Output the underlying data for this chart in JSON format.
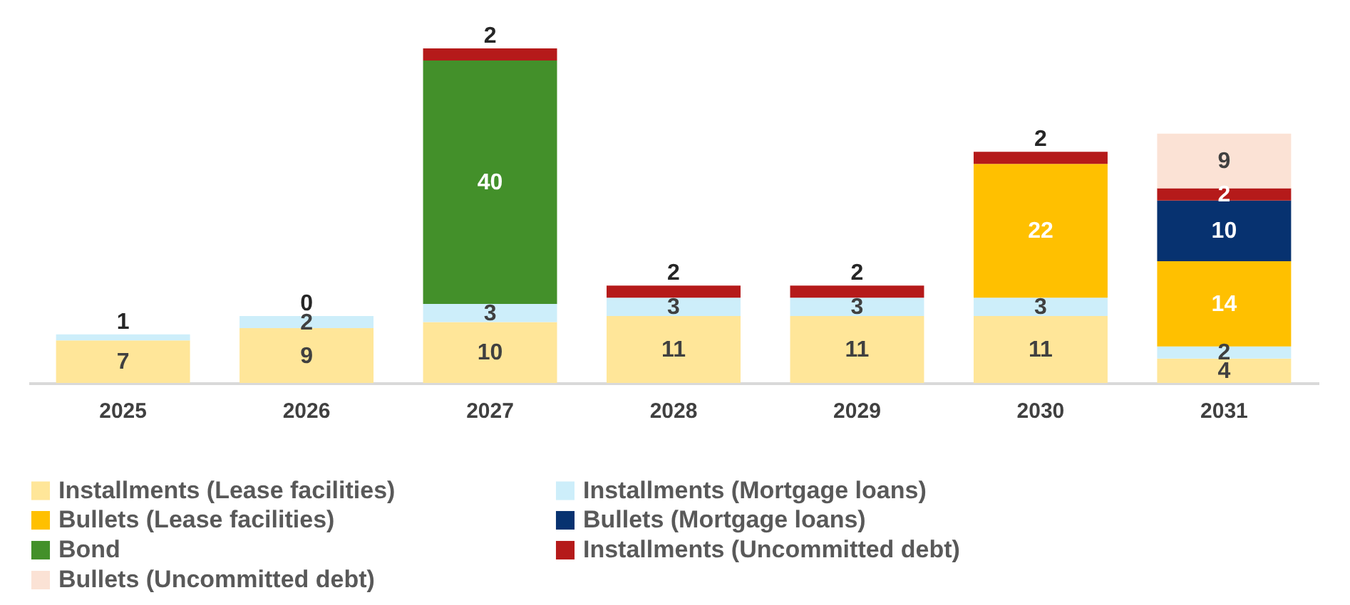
{
  "chart_data": {
    "type": "bar",
    "stacked": true,
    "data_labels": true,
    "legend": "bottom",
    "grid": false,
    "categories": [
      "2025",
      "2026",
      "2027",
      "2028",
      "2029",
      "2030",
      "2031"
    ],
    "series": [
      {
        "name": "Installments (Lease facilities)",
        "color": "#ffe699",
        "values": [
          7,
          9,
          10,
          11,
          11,
          11,
          4
        ]
      },
      {
        "name": "Installments (Mortgage loans)",
        "color": "#cdeefa",
        "values": [
          1,
          2,
          3,
          3,
          3,
          3,
          2
        ]
      },
      {
        "name": "Bullets (Lease facilities)",
        "color": "#ffc000",
        "values": [
          null,
          null,
          null,
          null,
          null,
          22,
          14
        ]
      },
      {
        "name": "Bullets (Mortgage loans)",
        "color": "#073270",
        "values": [
          null,
          null,
          null,
          null,
          null,
          null,
          10
        ]
      },
      {
        "name": "Bond",
        "color": "#43902a",
        "values": [
          null,
          null,
          40,
          null,
          null,
          null,
          null
        ]
      },
      {
        "name": "Installments (Uncommitted debt)",
        "color": "#b51a1a",
        "values": [
          null,
          0,
          2,
          2,
          2,
          2,
          2
        ]
      },
      {
        "name": "Bullets (Uncommitted debt)",
        "color": "#fbe2d5",
        "values": [
          null,
          null,
          null,
          null,
          null,
          null,
          9
        ]
      }
    ]
  }
}
